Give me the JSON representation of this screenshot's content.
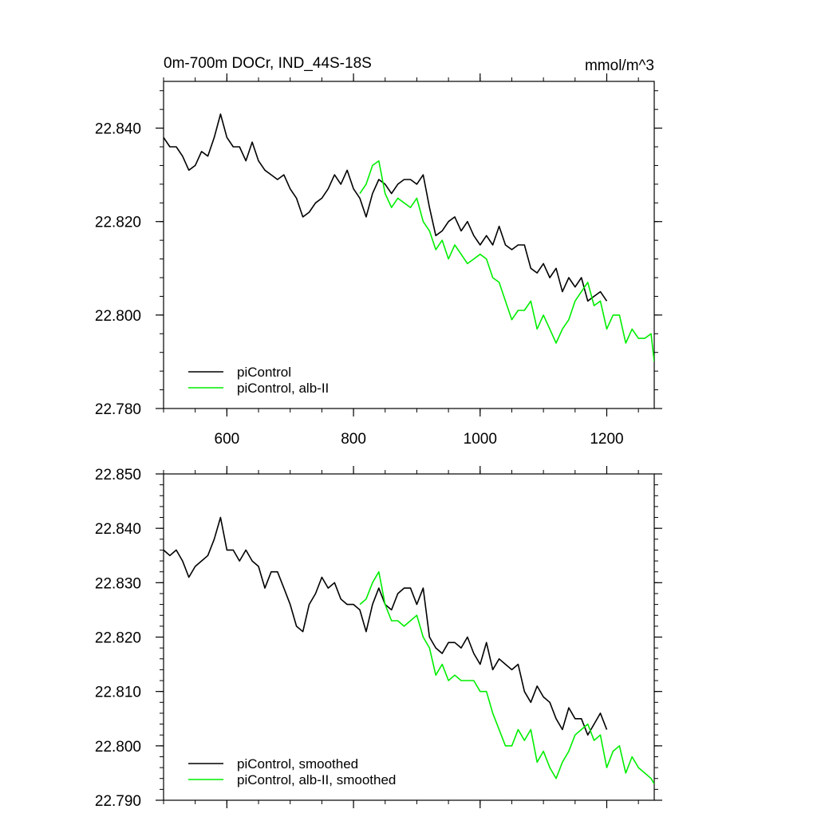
{
  "chart_data": [
    {
      "type": "line",
      "title": "0m-700m DOCr, IND_44S-18S",
      "units": "mmol/m^3",
      "xlim": [
        500,
        1275
      ],
      "ylim": [
        22.78,
        22.85
      ],
      "x_ticks": [
        600,
        800,
        1000,
        1200
      ],
      "x_tick_labels": [
        "600",
        "800",
        "1000",
        "1200"
      ],
      "y_ticks": [
        22.78,
        22.8,
        22.82,
        22.84
      ],
      "y_tick_labels": [
        "22.780",
        "22.800",
        "22.820",
        "22.840"
      ],
      "grid": false,
      "legend_position": "bottom-left",
      "series": [
        {
          "name": "piControl",
          "color": "#000000",
          "x": [
            500,
            510,
            520,
            530,
            540,
            550,
            560,
            570,
            580,
            590,
            600,
            610,
            620,
            630,
            640,
            650,
            660,
            670,
            680,
            690,
            700,
            710,
            720,
            730,
            740,
            750,
            760,
            770,
            780,
            790,
            800,
            810,
            820,
            830,
            840,
            850,
            860,
            870,
            880,
            890,
            900,
            910,
            920,
            930,
            940,
            950,
            960,
            970,
            980,
            990,
            1000,
            1010,
            1020,
            1030,
            1040,
            1050,
            1060,
            1070,
            1080,
            1090,
            1100,
            1110,
            1120,
            1130,
            1140,
            1150,
            1160,
            1170,
            1180,
            1190,
            1200
          ],
          "y": [
            22.838,
            22.836,
            22.836,
            22.834,
            22.831,
            22.832,
            22.835,
            22.834,
            22.838,
            22.843,
            22.838,
            22.836,
            22.836,
            22.833,
            22.837,
            22.833,
            22.831,
            22.83,
            22.829,
            22.83,
            22.827,
            22.825,
            22.821,
            22.822,
            22.824,
            22.825,
            22.827,
            22.83,
            22.828,
            22.831,
            22.827,
            22.825,
            22.821,
            22.826,
            22.829,
            22.828,
            22.826,
            22.828,
            22.829,
            22.829,
            22.828,
            22.83,
            22.823,
            22.817,
            22.818,
            22.82,
            22.821,
            22.818,
            22.82,
            22.817,
            22.815,
            22.817,
            22.815,
            22.819,
            22.815,
            22.814,
            22.815,
            22.815,
            22.81,
            22.809,
            22.811,
            22.808,
            22.81,
            22.805,
            22.808,
            22.806,
            22.808,
            22.803,
            22.804,
            22.805,
            22.803
          ]
        },
        {
          "name": "piControl, alb-II",
          "color": "#00ee00",
          "x": [
            810,
            820,
            830,
            840,
            850,
            860,
            870,
            880,
            890,
            900,
            910,
            920,
            930,
            940,
            950,
            960,
            970,
            980,
            990,
            1000,
            1010,
            1020,
            1030,
            1040,
            1050,
            1060,
            1070,
            1080,
            1090,
            1100,
            1110,
            1120,
            1130,
            1140,
            1150,
            1160,
            1170,
            1180,
            1190,
            1200,
            1210,
            1220,
            1230,
            1240,
            1250,
            1260,
            1270,
            1275
          ],
          "y": [
            22.826,
            22.828,
            22.832,
            22.833,
            22.826,
            22.823,
            22.825,
            22.824,
            22.823,
            22.825,
            22.82,
            22.818,
            22.814,
            22.816,
            22.812,
            22.815,
            22.813,
            22.811,
            22.812,
            22.813,
            22.812,
            22.808,
            22.807,
            22.803,
            22.799,
            22.801,
            22.801,
            22.803,
            22.797,
            22.8,
            22.797,
            22.794,
            22.797,
            22.799,
            22.803,
            22.805,
            22.807,
            22.802,
            22.803,
            22.797,
            22.8,
            22.8,
            22.794,
            22.797,
            22.795,
            22.795,
            22.796,
            22.79
          ]
        }
      ]
    },
    {
      "type": "line",
      "title": "",
      "xlim": [
        500,
        1275
      ],
      "ylim": [
        22.79,
        22.85
      ],
      "x_ticks": [
        600,
        800,
        1000,
        1200
      ],
      "x_tick_labels": [
        "",
        "",
        "",
        ""
      ],
      "y_ticks": [
        22.79,
        22.8,
        22.81,
        22.82,
        22.83,
        22.84,
        22.85
      ],
      "y_tick_labels": [
        "22.790",
        "22.800",
        "22.810",
        "22.820",
        "22.830",
        "22.840",
        "22.850"
      ],
      "grid": false,
      "legend_position": "bottom-left",
      "series": [
        {
          "name": "piControl, smoothed",
          "color": "#000000",
          "x": [
            500,
            510,
            520,
            530,
            540,
            550,
            560,
            570,
            580,
            590,
            600,
            610,
            620,
            630,
            640,
            650,
            660,
            670,
            680,
            690,
            700,
            710,
            720,
            730,
            740,
            750,
            760,
            770,
            780,
            790,
            800,
            810,
            820,
            830,
            840,
            850,
            860,
            870,
            880,
            890,
            900,
            910,
            920,
            930,
            940,
            950,
            960,
            970,
            980,
            990,
            1000,
            1010,
            1020,
            1030,
            1040,
            1050,
            1060,
            1070,
            1080,
            1090,
            1100,
            1110,
            1120,
            1130,
            1140,
            1150,
            1160,
            1170,
            1180,
            1190,
            1200
          ],
          "y": [
            22.836,
            22.835,
            22.836,
            22.834,
            22.831,
            22.833,
            22.834,
            22.835,
            22.838,
            22.842,
            22.836,
            22.836,
            22.834,
            22.836,
            22.834,
            22.833,
            22.829,
            22.832,
            22.832,
            22.829,
            22.826,
            22.822,
            22.821,
            22.826,
            22.828,
            22.831,
            22.829,
            22.83,
            22.827,
            22.826,
            22.826,
            22.825,
            22.821,
            22.826,
            22.829,
            22.826,
            22.825,
            22.828,
            22.829,
            22.829,
            22.826,
            22.829,
            22.82,
            22.818,
            22.817,
            22.819,
            22.819,
            22.818,
            22.82,
            22.817,
            22.815,
            22.819,
            22.814,
            22.816,
            22.815,
            22.814,
            22.815,
            22.81,
            22.808,
            22.811,
            22.809,
            22.808,
            22.805,
            22.803,
            22.807,
            22.805,
            22.805,
            22.802,
            22.804,
            22.806,
            22.803
          ]
        },
        {
          "name": "piControl, alb-II, smoothed",
          "color": "#00ee00",
          "x": [
            810,
            820,
            830,
            840,
            850,
            860,
            870,
            880,
            890,
            900,
            910,
            920,
            930,
            940,
            950,
            960,
            970,
            980,
            990,
            1000,
            1010,
            1020,
            1030,
            1040,
            1050,
            1060,
            1070,
            1080,
            1090,
            1100,
            1110,
            1120,
            1130,
            1140,
            1150,
            1160,
            1170,
            1180,
            1190,
            1200,
            1210,
            1220,
            1230,
            1240,
            1250,
            1260,
            1270,
            1275
          ],
          "y": [
            22.826,
            22.827,
            22.83,
            22.832,
            22.826,
            22.823,
            22.823,
            22.822,
            22.823,
            22.824,
            22.82,
            22.818,
            22.813,
            22.815,
            22.812,
            22.813,
            22.812,
            22.812,
            22.812,
            22.81,
            22.81,
            22.806,
            22.803,
            22.8,
            22.8,
            22.803,
            22.801,
            22.803,
            22.797,
            22.799,
            22.796,
            22.794,
            22.797,
            22.799,
            22.802,
            22.803,
            22.804,
            22.801,
            22.802,
            22.796,
            22.799,
            22.8,
            22.795,
            22.798,
            22.796,
            22.795,
            22.794,
            22.793
          ]
        }
      ]
    }
  ]
}
